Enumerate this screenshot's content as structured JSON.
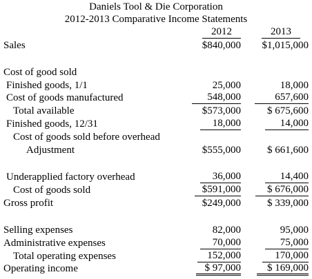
{
  "company": "Daniels Tool & Die Corporation",
  "subtitle": "2012-2013 Comparative Income Statements",
  "years": [
    "2012",
    "2013"
  ],
  "rows": [
    {
      "label": "Sales",
      "v2012": "$840,000",
      "v2013": "$1,015,000"
    },
    {
      "label": "Cost of good sold",
      "v2012": "",
      "v2013": ""
    },
    {
      "label": "Finished goods, 1/1",
      "v2012": "25,000",
      "v2013": "18,000"
    },
    {
      "label": "Cost of goods manufactured",
      "v2012": "548,000",
      "v2013": "657,600"
    },
    {
      "label": "Total available",
      "v2012": "$573,000",
      "v2013": "$ 675,600"
    },
    {
      "label": "Finished goods, 12/31",
      "v2012": "18,000",
      "v2013": "14,000"
    },
    {
      "label": "Cost of goods sold before overhead",
      "v2012": "",
      "v2013": ""
    },
    {
      "label": "Adjustment",
      "v2012": "$555,000",
      "v2013": "$ 661,600"
    },
    {
      "label": "Underapplied factory overhead",
      "v2012": "36,000",
      "v2013": "14,400"
    },
    {
      "label": "Cost of goods sold",
      "v2012": "$591,000",
      "v2013": "$ 676,000"
    },
    {
      "label": "Gross profit",
      "v2012": "$249,000",
      "v2013": "$ 339,000"
    },
    {
      "label": "Selling expenses",
      "v2012": "82,000",
      "v2013": "95,000"
    },
    {
      "label": "Administrative expenses",
      "v2012": "70,000",
      "v2013": "75,000"
    },
    {
      "label": "Total operating expenses",
      "v2012": "152,000",
      "v2013": "170,000"
    },
    {
      "label": "Operating income",
      "v2012": "$ 97,000",
      "v2013": "$ 169,000"
    }
  ]
}
